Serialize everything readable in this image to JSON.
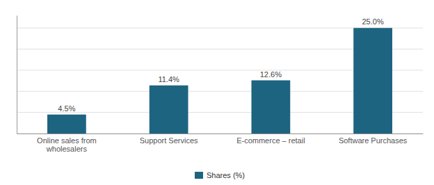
{
  "chart_data": {
    "type": "bar",
    "categories": [
      "Online sales from\nwholesalers",
      "Support Services",
      "E-commerce – retail",
      "Software Purchases"
    ],
    "series": [
      {
        "name": "Shares (%)",
        "color": "#1d6480",
        "values": [
          4.5,
          11.4,
          12.6,
          25.0
        ],
        "value_labels": [
          "4.5%",
          "11.4%",
          "12.6%",
          "25.0%"
        ]
      }
    ],
    "ylim": [
      0,
      28
    ],
    "yticks": [
      0,
      5,
      10,
      15,
      20,
      25
    ],
    "grid": true,
    "data_labels": true,
    "tick_labels": "x",
    "legend": "bottom"
  }
}
